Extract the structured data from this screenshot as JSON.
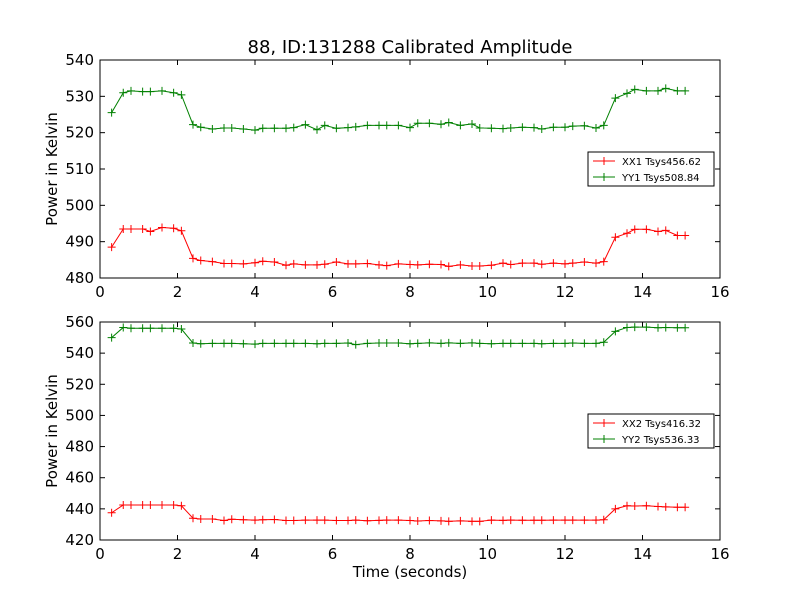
{
  "chart_data": [
    {
      "type": "line",
      "title": "88, ID:131288 Calibrated Amplitude",
      "xlabel": "",
      "ylabel": "Power in Kelvin",
      "xlim": [
        0,
        16
      ],
      "ylim": [
        480,
        540
      ],
      "xticks": [
        0,
        2,
        4,
        6,
        8,
        10,
        12,
        14,
        16
      ],
      "yticks": [
        480,
        490,
        500,
        510,
        520,
        530,
        540
      ],
      "legend": "center-right",
      "series": [
        {
          "name": "XX1 Tsys456.62",
          "color": "#ff0000",
          "marker": "+",
          "x": [
            0.3,
            0.6,
            0.8,
            1.1,
            1.3,
            1.6,
            1.9,
            2.1,
            2.4,
            2.6,
            2.9,
            3.2,
            3.4,
            3.7,
            4.0,
            4.2,
            4.5,
            4.8,
            5.0,
            5.3,
            5.6,
            5.8,
            6.1,
            6.4,
            6.6,
            6.9,
            7.2,
            7.4,
            7.7,
            8.0,
            8.2,
            8.5,
            8.8,
            9.0,
            9.3,
            9.6,
            9.8,
            10.1,
            10.4,
            10.6,
            10.9,
            11.2,
            11.4,
            11.7,
            12.0,
            12.2,
            12.5,
            12.8,
            13.0,
            13.3,
            13.6,
            13.8,
            14.1,
            14.4,
            14.6,
            14.9,
            15.1
          ],
          "y": [
            488.5,
            493.5,
            493.5,
            493.5,
            492.8,
            493.9,
            493.7,
            493.0,
            485.4,
            484.8,
            484.5,
            484.0,
            484.0,
            483.9,
            484.2,
            484.6,
            484.4,
            483.5,
            483.9,
            483.6,
            483.6,
            483.8,
            484.4,
            483.9,
            483.9,
            484.0,
            483.6,
            483.4,
            483.9,
            483.7,
            483.6,
            483.8,
            483.7,
            483.2,
            483.6,
            483.3,
            483.3,
            483.5,
            484.1,
            483.7,
            484.1,
            484.1,
            483.8,
            484.1,
            483.9,
            484.1,
            484.4,
            484.1,
            484.5,
            491.2,
            492.3,
            493.4,
            493.4,
            492.8,
            493.1,
            491.7,
            491.7
          ]
        },
        {
          "name": "YY1 Tsys508.84",
          "color": "#008000",
          "marker": "+",
          "x": [
            0.3,
            0.6,
            0.8,
            1.1,
            1.3,
            1.6,
            1.9,
            2.1,
            2.4,
            2.6,
            2.9,
            3.2,
            3.4,
            3.7,
            4.0,
            4.2,
            4.5,
            4.8,
            5.0,
            5.3,
            5.6,
            5.8,
            6.1,
            6.4,
            6.6,
            6.9,
            7.2,
            7.4,
            7.7,
            8.0,
            8.2,
            8.5,
            8.8,
            9.0,
            9.3,
            9.6,
            9.8,
            10.1,
            10.4,
            10.6,
            10.9,
            11.2,
            11.4,
            11.7,
            12.0,
            12.2,
            12.5,
            12.8,
            13.0,
            13.3,
            13.6,
            13.8,
            14.1,
            14.4,
            14.6,
            14.9,
            15.1
          ],
          "y": [
            525.5,
            531.0,
            531.5,
            531.3,
            531.3,
            531.5,
            531.0,
            530.4,
            522.2,
            521.5,
            521.0,
            521.3,
            521.3,
            521.0,
            520.7,
            521.2,
            521.2,
            521.2,
            521.4,
            522.2,
            520.8,
            522.0,
            521.2,
            521.4,
            521.6,
            522.0,
            522.0,
            522.0,
            522.0,
            521.4,
            522.6,
            522.6,
            522.3,
            522.8,
            522.0,
            522.4,
            521.3,
            521.2,
            521.1,
            521.3,
            521.5,
            521.4,
            521.0,
            521.5,
            521.5,
            521.8,
            521.9,
            521.3,
            522.0,
            529.5,
            530.8,
            531.9,
            531.5,
            531.5,
            532.2,
            531.5,
            531.5
          ]
        }
      ]
    },
    {
      "type": "line",
      "title": "",
      "xlabel": "Time (seconds)",
      "ylabel": "Power in Kelvin",
      "xlim": [
        0,
        16
      ],
      "ylim": [
        420,
        560
      ],
      "xticks": [
        0,
        2,
        4,
        6,
        8,
        10,
        12,
        14,
        16
      ],
      "yticks": [
        420,
        440,
        460,
        480,
        500,
        520,
        540,
        560
      ],
      "legend": "center-right",
      "series": [
        {
          "name": "XX2 Tsys416.32",
          "color": "#ff0000",
          "marker": "+",
          "x": [
            0.3,
            0.6,
            0.8,
            1.1,
            1.3,
            1.6,
            1.9,
            2.1,
            2.4,
            2.6,
            2.9,
            3.2,
            3.4,
            3.7,
            4.0,
            4.2,
            4.5,
            4.8,
            5.0,
            5.3,
            5.6,
            5.8,
            6.1,
            6.4,
            6.6,
            6.9,
            7.2,
            7.4,
            7.7,
            8.0,
            8.2,
            8.5,
            8.8,
            9.0,
            9.3,
            9.6,
            9.8,
            10.1,
            10.4,
            10.6,
            10.9,
            11.2,
            11.4,
            11.7,
            12.0,
            12.2,
            12.5,
            12.8,
            13.0,
            13.3,
            13.6,
            13.8,
            14.1,
            14.4,
            14.6,
            14.9,
            15.1
          ],
          "y": [
            437.5,
            442.5,
            442.5,
            442.5,
            442.5,
            442.5,
            442.5,
            442.0,
            434.0,
            433.5,
            433.5,
            432.5,
            433.3,
            433.0,
            432.8,
            433.0,
            433.2,
            432.5,
            432.5,
            432.8,
            432.8,
            432.8,
            432.5,
            432.5,
            432.8,
            432.4,
            432.6,
            432.8,
            432.8,
            432.5,
            432.2,
            432.5,
            432.3,
            432.0,
            432.3,
            432.0,
            432.0,
            432.8,
            432.6,
            432.8,
            432.7,
            432.7,
            432.7,
            432.8,
            432.8,
            432.8,
            432.8,
            432.8,
            433.0,
            440.0,
            442.0,
            441.8,
            442.0,
            441.5,
            441.3,
            441.0,
            441.0
          ]
        },
        {
          "name": "YY2 Tsys536.33",
          "color": "#008000",
          "marker": "+",
          "x": [
            0.3,
            0.6,
            0.8,
            1.1,
            1.3,
            1.6,
            1.9,
            2.1,
            2.4,
            2.6,
            2.9,
            3.2,
            3.4,
            3.7,
            4.0,
            4.2,
            4.5,
            4.8,
            5.0,
            5.3,
            5.6,
            5.8,
            6.1,
            6.4,
            6.6,
            6.9,
            7.2,
            7.4,
            7.7,
            8.0,
            8.2,
            8.5,
            8.8,
            9.0,
            9.3,
            9.6,
            9.8,
            10.1,
            10.4,
            10.6,
            10.9,
            11.2,
            11.4,
            11.7,
            12.0,
            12.2,
            12.5,
            12.8,
            13.0,
            13.3,
            13.6,
            13.8,
            14.1,
            14.4,
            14.6,
            14.9,
            15.1
          ],
          "y": [
            550.0,
            556.5,
            556.0,
            556.0,
            556.0,
            556.0,
            556.0,
            555.5,
            546.5,
            546.0,
            546.3,
            546.3,
            546.3,
            546.0,
            545.8,
            546.3,
            546.3,
            546.3,
            546.3,
            546.3,
            546.0,
            546.3,
            546.3,
            546.5,
            545.5,
            546.3,
            546.5,
            546.5,
            546.5,
            546.0,
            546.3,
            546.6,
            546.3,
            546.6,
            546.3,
            546.6,
            546.3,
            546.0,
            546.3,
            546.3,
            546.3,
            546.3,
            546.0,
            546.3,
            546.3,
            546.5,
            546.3,
            546.3,
            547.0,
            554.0,
            556.5,
            556.7,
            556.7,
            556.3,
            556.5,
            556.3,
            556.3
          ]
        }
      ]
    }
  ]
}
